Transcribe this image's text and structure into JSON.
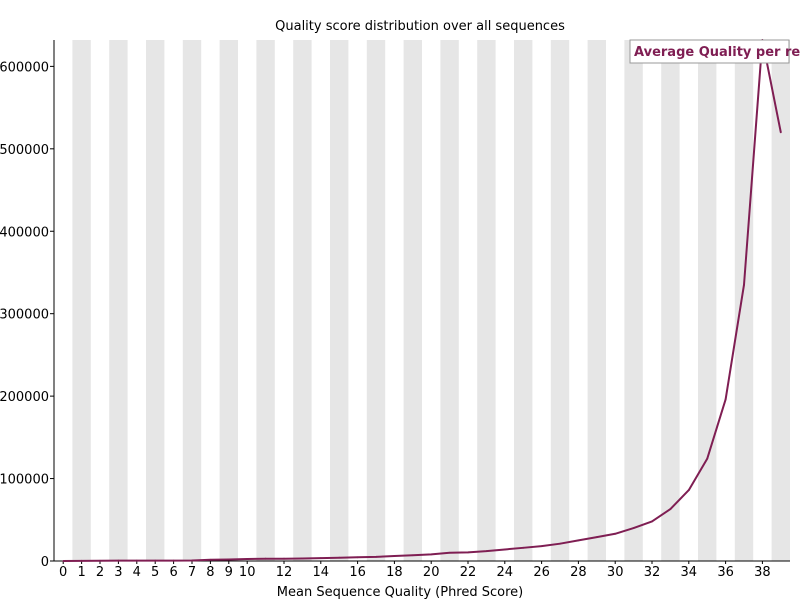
{
  "chart_data": {
    "type": "line",
    "title": "Quality score distribution over all sequences",
    "xlabel": "Mean Sequence Quality (Phred Score)",
    "ylabel": "",
    "x": [
      0,
      1,
      2,
      3,
      4,
      5,
      6,
      7,
      8,
      9,
      10,
      11,
      12,
      13,
      14,
      15,
      16,
      17,
      18,
      19,
      20,
      21,
      22,
      23,
      24,
      25,
      26,
      27,
      28,
      29,
      30,
      31,
      32,
      33,
      34,
      35,
      36,
      37,
      38,
      39
    ],
    "x_tick_labels": [
      "0",
      "1",
      "2",
      "3",
      "4",
      "5",
      "6",
      "7",
      "8",
      "9",
      "10",
      "12",
      "14",
      "16",
      "18",
      "20",
      "22",
      "24",
      "26",
      "28",
      "30",
      "32",
      "34",
      "36",
      "38"
    ],
    "x_tick_positions": [
      0,
      1,
      2,
      3,
      4,
      5,
      6,
      7,
      8,
      9,
      10,
      12,
      14,
      16,
      18,
      20,
      22,
      24,
      26,
      28,
      30,
      32,
      34,
      36,
      38
    ],
    "ylim": [
      0,
      632000
    ],
    "y_ticks": [
      0,
      100000,
      200000,
      300000,
      400000,
      500000,
      600000
    ],
    "y_tick_labels": [
      "0",
      "100000",
      "200000",
      "300000",
      "400000",
      "500000",
      "600000"
    ],
    "series": [
      {
        "name": "Average Quality per read",
        "color": "#7f1e53",
        "values": [
          0,
          200,
          300,
          400,
          400,
          500,
          500,
          600,
          1500,
          1800,
          2500,
          2800,
          2800,
          3000,
          3500,
          4000,
          4500,
          5000,
          6000,
          7000,
          8000,
          10000,
          10500,
          12000,
          14000,
          16000,
          18000,
          21000,
          25000,
          29000,
          33000,
          40000,
          48000,
          63000,
          86000,
          124000,
          196000,
          335000,
          632000,
          520000
        ]
      }
    ],
    "legend_position": "top-right",
    "stripes": "alternating-vertical",
    "stripe_color": "#e6e6e6",
    "grid": false
  }
}
